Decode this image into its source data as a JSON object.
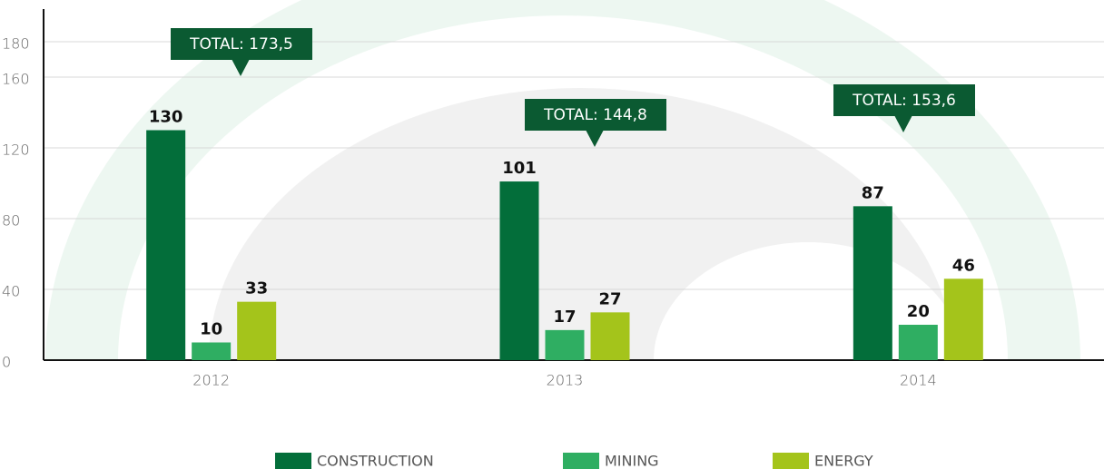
{
  "chart_data": {
    "type": "bar",
    "categories": [
      "2012",
      "2013",
      "2014"
    ],
    "series": [
      {
        "name": "CONSTRUCTION",
        "color": "#036e3a",
        "values": [
          130,
          101,
          87
        ]
      },
      {
        "name": "MINING",
        "color": "#2fae62",
        "values": [
          10,
          17,
          20
        ]
      },
      {
        "name": "ENERGY",
        "color": "#a4c41b",
        "values": [
          33,
          27,
          46
        ]
      }
    ],
    "annotations": [
      "TOTAL: 173,5",
      "TOTAL: 144,8",
      "TOTAL: 153,6"
    ],
    "ylim": [
      0,
      180
    ],
    "yticks": [
      0,
      40,
      80,
      120,
      160,
      180
    ],
    "grid": true,
    "legend": "bottom"
  }
}
